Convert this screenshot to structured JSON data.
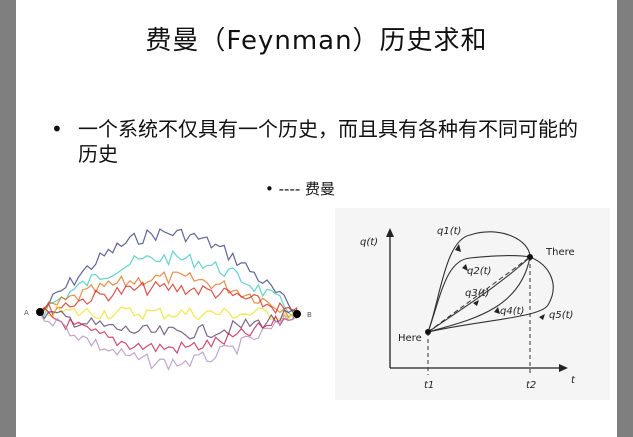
{
  "slide": {
    "title": "费曼（Feynman）历史求和",
    "bullet": "一个系统不仅具有一个历史，而且具有各种有不同可能的历史",
    "attribution": "---- 费曼"
  },
  "left_figure": {
    "endpoint_a": "A",
    "endpoint_b": "B",
    "path_colors": [
      "#3a3f7a",
      "#3fc6c0",
      "#e07020",
      "#d02a20",
      "#f0e020",
      "#5a4070",
      "#c0204a",
      "#b090c0"
    ]
  },
  "right_figure": {
    "y_axis_label": "q(t)",
    "x_axis_label": "t",
    "start_label": "Here",
    "end_label": "There",
    "t1_label": "t1",
    "t2_label": "t2",
    "paths": [
      "q1(t)",
      "q2(t)",
      "q3(t)",
      "q4(t)",
      "q5(t)"
    ]
  }
}
